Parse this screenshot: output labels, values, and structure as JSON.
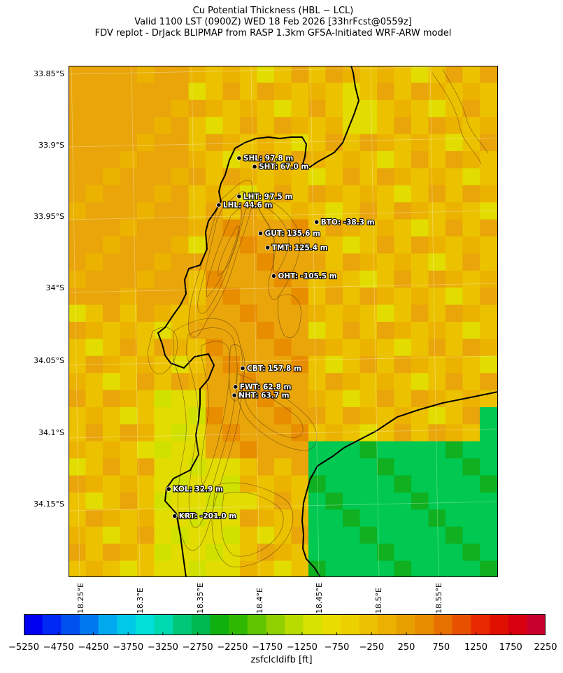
{
  "title": {
    "line1": "Cu Potential Thickness (HBL − LCL)",
    "line2": "Valid 1100 LST (0900Z) WED 18 Feb 2026 [33hrFcst@0559z]",
    "line3": "FDV replot - DrJack BLIPMAP from RASP 1.3km GFSA-Initiated WRF-ARW model"
  },
  "axes": {
    "lat_ticks": [
      "33.85°S",
      "33.9°S",
      "33.95°S",
      "34°S",
      "34.05°S",
      "34.1°S",
      "34.15°S"
    ],
    "lon_ticks": [
      "18.25°E",
      "18.3°E",
      "18.35°E",
      "18.4°E",
      "18.45°E",
      "18.5°E",
      "18.55°E"
    ],
    "lat_range": [
      -34.2,
      -33.84
    ],
    "lon_range": [
      18.24,
      18.6
    ]
  },
  "stations": [
    {
      "label": "SHL: 97.8 m",
      "lon": 18.383,
      "lat": -33.905
    },
    {
      "label": "SHT: 67.0 m",
      "lon": 18.396,
      "lat": -33.911
    },
    {
      "label": "LHT: 97.5 m",
      "lon": 18.383,
      "lat": -33.932
    },
    {
      "label": "LHL: 44.6 m",
      "lon": 18.366,
      "lat": -33.938
    },
    {
      "label": "BTO: -38.3 m",
      "lon": 18.448,
      "lat": -33.95
    },
    {
      "label": "GUT: 135.6 m",
      "lon": 18.401,
      "lat": -33.958
    },
    {
      "label": "TMT: 125.4 m",
      "lon": 18.407,
      "lat": -33.968
    },
    {
      "label": "OHT: -105.5 m",
      "lon": 18.412,
      "lat": -33.988
    },
    {
      "label": "CBT: 157.8 m",
      "lon": 18.386,
      "lat": -34.053
    },
    {
      "label": "FWT: 62.8 m",
      "lon": 18.38,
      "lat": -34.066
    },
    {
      "label": "NHT: 63.7 m",
      "lon": 18.379,
      "lat": -34.072
    },
    {
      "label": "KOL: 32.9 m",
      "lon": 18.324,
      "lat": -34.138
    },
    {
      "label": "KRT: -201.0 m",
      "lon": 18.329,
      "lat": -34.157
    }
  ],
  "colorbar": {
    "label": "zsfclcldifb [ft]",
    "ticks": [
      "−5250",
      "−4750",
      "−4250",
      "−3750",
      "−3250",
      "−2750",
      "−2250",
      "−1750",
      "−1250",
      "−750",
      "−250",
      "250",
      "750",
      "1250",
      "1750",
      "2250"
    ],
    "colors": [
      "#0000f0",
      "#0028f4",
      "#0050f0",
      "#0078f0",
      "#00a8f0",
      "#00c8e8",
      "#00e0d8",
      "#00d8b0",
      "#00c878",
      "#00b850",
      "#10b010",
      "#30b800",
      "#60c400",
      "#90d000",
      "#b8dc00",
      "#d8e200",
      "#e8dc00",
      "#ecd000",
      "#ecc000",
      "#ecb000",
      "#e8a000",
      "#e88c00",
      "#e87000",
      "#e85000",
      "#e82800",
      "#e01000",
      "#d80010",
      "#c8002c"
    ],
    "min": -5250,
    "max": 2250
  },
  "field_colors": {
    "cell_orange": "#e9a50a",
    "cell_light_orange": "#ebb300",
    "cell_yellow": "#ecc200",
    "cell_bright_yellow": "#e2dc00",
    "cell_lime": "#d0e100",
    "cell_dark_orange": "#e88c00",
    "cell_red_orange": "#e86400",
    "cell_green": "#00c850",
    "cell_mid_green": "#10b020",
    "cell_blue": "#0078f0"
  }
}
